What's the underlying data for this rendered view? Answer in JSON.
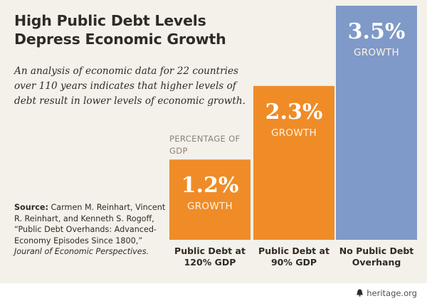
{
  "header": {
    "title": "High Public Debt Levels Depress Economic Growth",
    "subtitle": "An analysis of economic data for 22 countries over 110 years indicates that higher levels of debt result in lower levels of economic growth."
  },
  "axis_note": "PERCENTAGE OF GDP",
  "source": {
    "label": "Source:",
    "text": " Carmen M. Reinhart, Vincent R. Reinhart, and Kenneth S. Rogoff, “Public Debt Overhands: Advanced-Economy Episodes Since 1800,” ",
    "journal": "Jouranl of Economic Perspectives."
  },
  "footer": {
    "site": "heritage.org",
    "logo_icon": "liberty-bell-icon"
  },
  "chart_data": {
    "type": "bar",
    "title": "High Public Debt Levels Depress Economic Growth",
    "ylabel": "PERCENTAGE OF GDP",
    "categories": [
      "Public Debt at\n120% GDP",
      "Public Debt at\n90% GDP",
      "No Public Debt\nOverhang"
    ],
    "values": [
      1.2,
      2.3,
      3.5
    ],
    "value_labels": [
      "1.2%",
      "2.3%",
      "3.5%"
    ],
    "unit_label": "GROWTH",
    "colors": [
      "#ef8c28",
      "#ef8c28",
      "#7f99c8"
    ],
    "ylim": [
      0,
      3.5
    ],
    "grid": false,
    "legend": "none"
  }
}
